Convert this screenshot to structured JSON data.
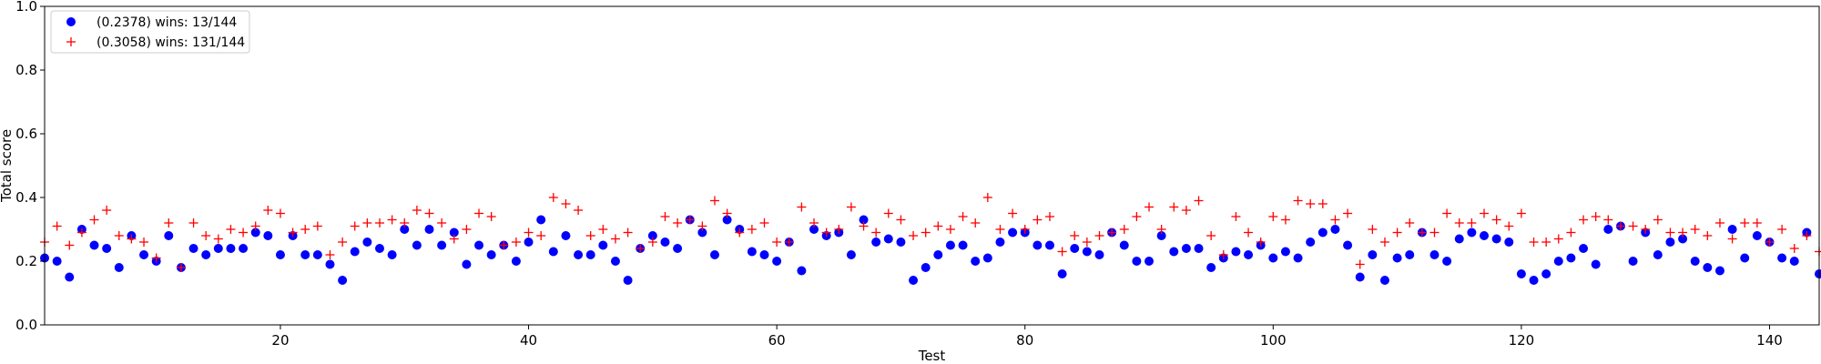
{
  "chart_data": {
    "type": "scatter",
    "title": "",
    "xlabel": "Test",
    "ylabel": "Total score",
    "xlim": [
      1,
      144
    ],
    "ylim": [
      0.0,
      1.0
    ],
    "xticks": [
      20,
      40,
      60,
      80,
      100,
      120,
      140
    ],
    "yticks": [
      0.0,
      0.2,
      0.4,
      0.6,
      0.8,
      1.0
    ],
    "xtick_labels": [
      "20",
      "40",
      "60",
      "80",
      "100",
      "120",
      "140"
    ],
    "ytick_labels": [
      "0.0",
      "0.2",
      "0.4",
      "0.6",
      "0.8",
      "1.0"
    ],
    "grid": false,
    "legend_position": "top-left",
    "series": [
      {
        "name": "(0.2378) wins: 13/144",
        "marker": "circle",
        "color": "#0000ff",
        "values": [
          0.21,
          0.2,
          0.15,
          0.3,
          0.25,
          0.24,
          0.18,
          0.28,
          0.22,
          0.2,
          0.28,
          0.18,
          0.24,
          0.22,
          0.24,
          0.24,
          0.24,
          0.29,
          0.28,
          0.22,
          0.28,
          0.22,
          0.22,
          0.19,
          0.14,
          0.23,
          0.26,
          0.24,
          0.22,
          0.3,
          0.25,
          0.3,
          0.25,
          0.29,
          0.19,
          0.25,
          0.22,
          0.25,
          0.2,
          0.26,
          0.33,
          0.23,
          0.28,
          0.22,
          0.22,
          0.25,
          0.2,
          0.14,
          0.24,
          0.28,
          0.26,
          0.24,
          0.33,
          0.29,
          0.22,
          0.33,
          0.3,
          0.23,
          0.22,
          0.2,
          0.26,
          0.17,
          0.3,
          0.28,
          0.29,
          0.22,
          0.33,
          0.26,
          0.27,
          0.26,
          0.14,
          0.18,
          0.22,
          0.25,
          0.25,
          0.2,
          0.21,
          0.26,
          0.29,
          0.29,
          0.25,
          0.25,
          0.16,
          0.24,
          0.23,
          0.22,
          0.29,
          0.25,
          0.2,
          0.2,
          0.28,
          0.23,
          0.24,
          0.24,
          0.18,
          0.21,
          0.23,
          0.22,
          0.25,
          0.21,
          0.23,
          0.21,
          0.26,
          0.29,
          0.3,
          0.25,
          0.15,
          0.22,
          0.14,
          0.21,
          0.22,
          0.29,
          0.22,
          0.2,
          0.27,
          0.29,
          0.28,
          0.27,
          0.26,
          0.16,
          0.14,
          0.16,
          0.2,
          0.21,
          0.24,
          0.19,
          0.3,
          0.31,
          0.2,
          0.29,
          0.22,
          0.26,
          0.27,
          0.2,
          0.18,
          0.17,
          0.3,
          0.21,
          0.28,
          0.26,
          0.21,
          0.2,
          0.29,
          0.16
        ]
      },
      {
        "name": "(0.3058) wins: 131/144",
        "marker": "plus",
        "color": "#ff0000",
        "values": [
          0.26,
          0.31,
          0.25,
          0.29,
          0.33,
          0.36,
          0.28,
          0.27,
          0.26,
          0.21,
          0.32,
          0.18,
          0.32,
          0.28,
          0.27,
          0.3,
          0.29,
          0.31,
          0.36,
          0.35,
          0.29,
          0.3,
          0.31,
          0.22,
          0.26,
          0.31,
          0.32,
          0.32,
          0.33,
          0.32,
          0.36,
          0.35,
          0.32,
          0.27,
          0.3,
          0.35,
          0.34,
          0.25,
          0.26,
          0.29,
          0.28,
          0.4,
          0.38,
          0.36,
          0.28,
          0.3,
          0.27,
          0.29,
          0.24,
          0.26,
          0.34,
          0.32,
          0.33,
          0.31,
          0.39,
          0.35,
          0.29,
          0.3,
          0.32,
          0.26,
          0.26,
          0.37,
          0.32,
          0.29,
          0.3,
          0.37,
          0.31,
          0.29,
          0.35,
          0.33,
          0.28,
          0.29,
          0.31,
          0.3,
          0.34,
          0.32,
          0.4,
          0.3,
          0.35,
          0.3,
          0.33,
          0.34,
          0.23,
          0.28,
          0.26,
          0.28,
          0.29,
          0.3,
          0.34,
          0.37,
          0.3,
          0.37,
          0.36,
          0.39,
          0.28,
          0.22,
          0.34,
          0.29,
          0.26,
          0.34,
          0.33,
          0.39,
          0.38,
          0.38,
          0.33,
          0.35,
          0.19,
          0.3,
          0.26,
          0.29,
          0.32,
          0.29,
          0.29,
          0.35,
          0.32,
          0.32,
          0.35,
          0.33,
          0.31,
          0.35,
          0.26,
          0.26,
          0.27,
          0.29,
          0.33,
          0.34,
          0.33,
          0.31,
          0.31,
          0.3,
          0.33,
          0.29,
          0.29,
          0.3,
          0.28,
          0.32,
          0.27,
          0.32,
          0.32,
          0.26,
          0.3,
          0.24,
          0.28,
          0.23
        ]
      }
    ]
  }
}
